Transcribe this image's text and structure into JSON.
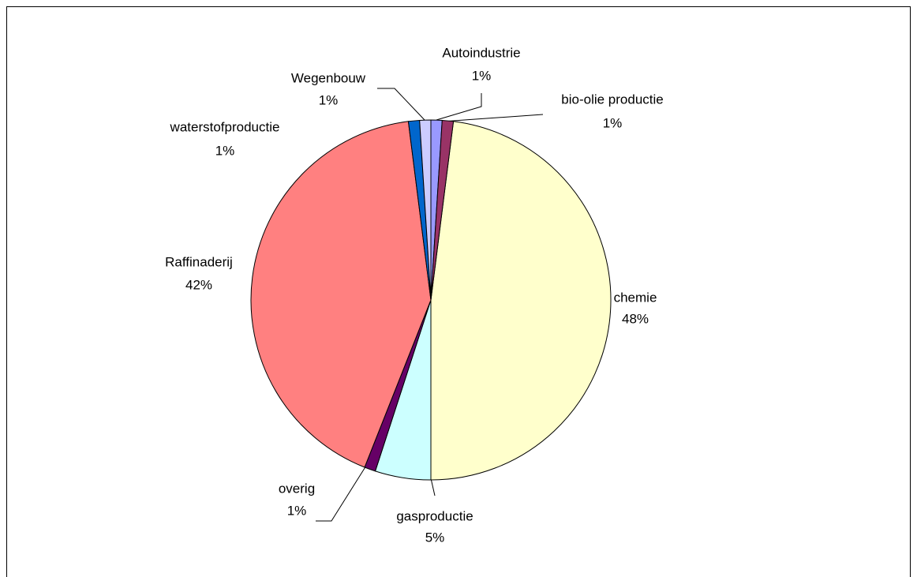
{
  "chart_data": {
    "type": "pie",
    "categories": [
      "chemie",
      "gasproductie",
      "overig",
      "Raffinaderij",
      "waterstofproductie",
      "Wegenbouw",
      "Autoindustrie",
      "bio-olie productie"
    ],
    "values": [
      48,
      5,
      1,
      42,
      1,
      1,
      1,
      1
    ],
    "value_labels": [
      "48%",
      "5%",
      "1%",
      "42%",
      "1%",
      "1%",
      "1%",
      "1%"
    ],
    "colors": [
      "#FFFFCC",
      "#CCFFFF",
      "#660066",
      "#FF8080",
      "#0066CC",
      "#CCCCFF",
      "#9999FF",
      "#993366"
    ]
  }
}
